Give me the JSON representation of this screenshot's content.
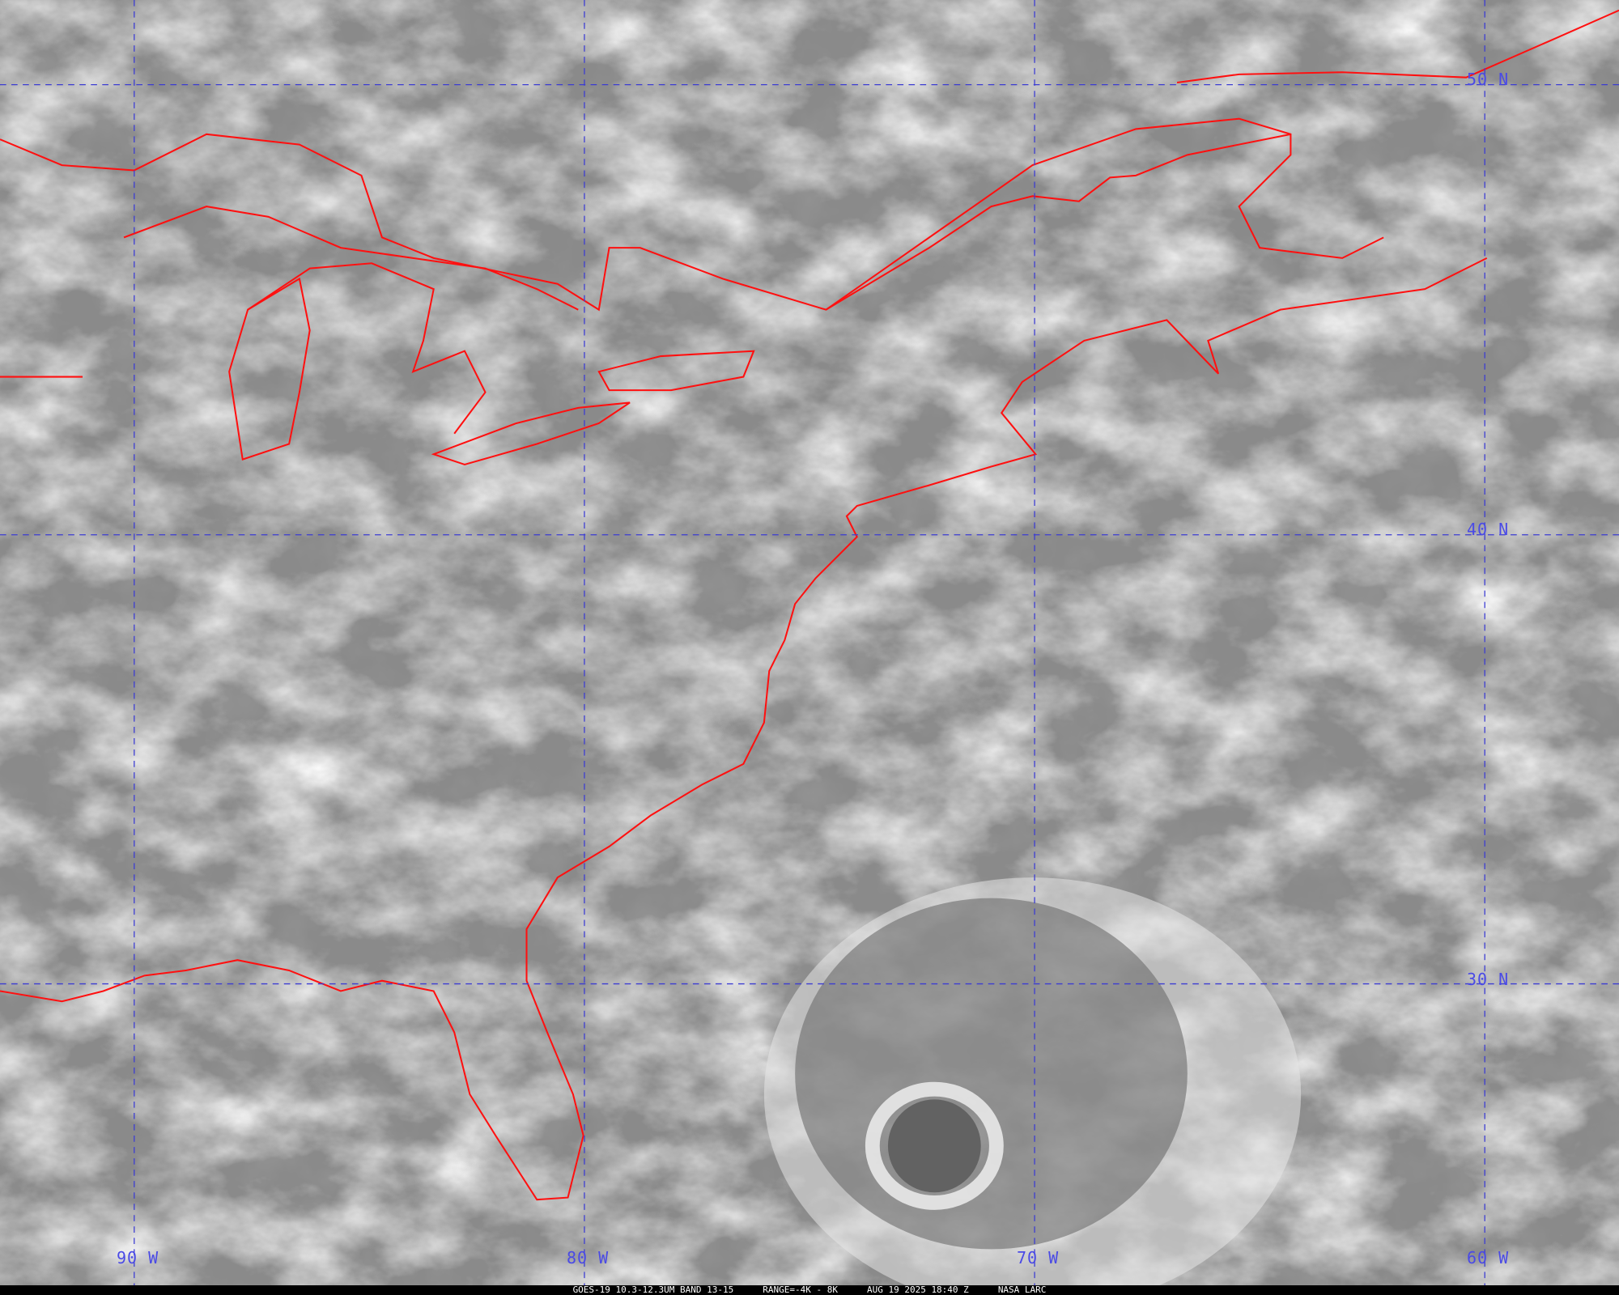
{
  "map": {
    "grid_labels": {
      "lat": [
        "50 N",
        "40 N",
        "30 N"
      ],
      "lon": [
        "90 W",
        "80 W",
        "70 W",
        "60 W"
      ]
    },
    "colors": {
      "borders": "#ff0000",
      "grid": "#3c3cd2",
      "labels": "#4a4ae6"
    }
  },
  "caption": {
    "product": "GOES-19 10.3-12.3UM BAND 13-15",
    "range": "RANGE=-4K - 8K",
    "datetime": "AUG 19 2025 18:40 Z",
    "source": "NASA LARC"
  }
}
